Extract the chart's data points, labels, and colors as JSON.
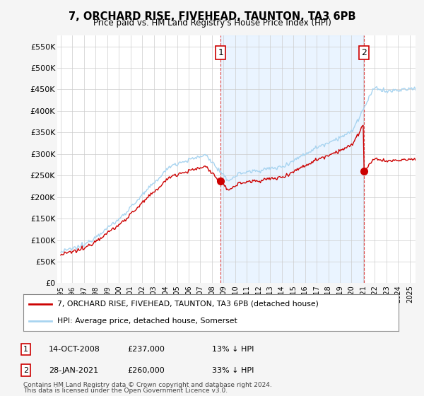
{
  "title": "7, ORCHARD RISE, FIVEHEAD, TAUNTON, TA3 6PB",
  "subtitle": "Price paid vs. HM Land Registry's House Price Index (HPI)",
  "ylim": [
    0,
    575000
  ],
  "yticks": [
    0,
    50000,
    100000,
    150000,
    200000,
    250000,
    300000,
    350000,
    400000,
    450000,
    500000,
    550000
  ],
  "ytick_labels": [
    "£0",
    "£50K",
    "£100K",
    "£150K",
    "£200K",
    "£250K",
    "£300K",
    "£350K",
    "£400K",
    "£450K",
    "£500K",
    "£550K"
  ],
  "hpi_color": "#a8d4f0",
  "hpi_fill_color": "#ddeeff",
  "price_color": "#cc0000",
  "vline_color": "#dd4444",
  "annotation1_date": "14-OCT-2008",
  "annotation1_price": 237000,
  "annotation1_hpi_pct": "13% ↓ HPI",
  "annotation2_date": "28-JAN-2021",
  "annotation2_price": 260000,
  "annotation2_hpi_pct": "33% ↓ HPI",
  "sale1_year": 2008.75,
  "sale2_year": 2021.08,
  "legend_line1": "7, ORCHARD RISE, FIVEHEAD, TAUNTON, TA3 6PB (detached house)",
  "legend_line2": "HPI: Average price, detached house, Somerset",
  "footer1": "Contains HM Land Registry data © Crown copyright and database right 2024.",
  "footer2": "This data is licensed under the Open Government Licence v3.0.",
  "bg_color": "#f5f5f5",
  "plot_bg_color": "#ffffff",
  "xmin": 1994.7,
  "xmax": 2025.5
}
